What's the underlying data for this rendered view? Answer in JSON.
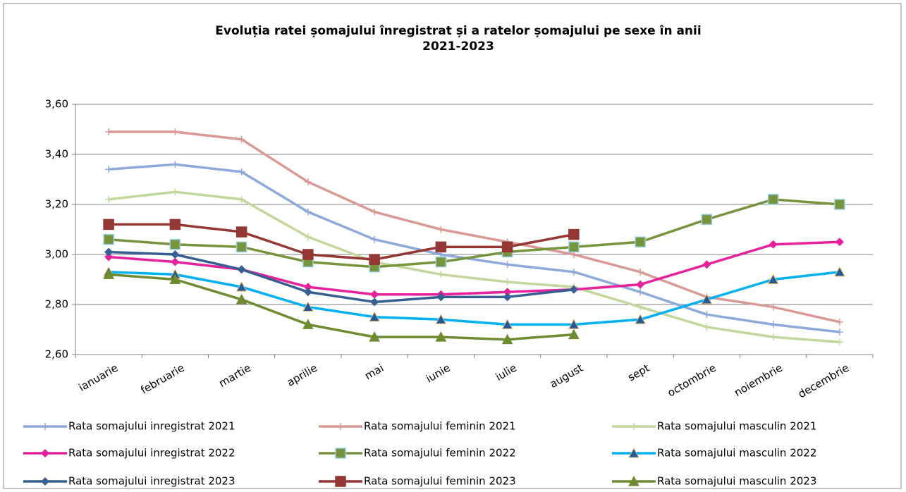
{
  "chart_data": {
    "type": "line",
    "title": [
      "Evoluția ratei șomajului înregistrat și a ratelor șomajului pe sexe în anii",
      "2021-2023"
    ],
    "categories": [
      "ianuarie",
      "februarie",
      "martie",
      "aprilie",
      "mai",
      "iunie",
      "iulie",
      "august",
      "sept",
      "octombrie",
      "noiembrie",
      "decembrie"
    ],
    "ylim": [
      2.6,
      3.6
    ],
    "yticks": [
      {
        "value": 2.6,
        "label": "2,60"
      },
      {
        "value": 2.8,
        "label": "2,80"
      },
      {
        "value": 3.0,
        "label": "3,00"
      },
      {
        "value": 3.2,
        "label": "3,20"
      },
      {
        "value": 3.4,
        "label": "3,40"
      },
      {
        "value": 3.6,
        "label": "3,60"
      }
    ],
    "grid": true,
    "legend": "bottom",
    "series": [
      {
        "name": "Rata somajului inregistrat 2021",
        "color": "#8eaadb",
        "marker": "plus",
        "values": [
          3.34,
          3.36,
          3.33,
          3.17,
          3.06,
          3.0,
          2.96,
          2.93,
          2.85,
          2.76,
          2.72,
          2.69
        ]
      },
      {
        "name": "Rata somajului feminin 2021",
        "color": "#d99a96",
        "marker": "plus",
        "values": [
          3.49,
          3.49,
          3.46,
          3.29,
          3.17,
          3.1,
          3.05,
          3.0,
          2.93,
          2.83,
          2.79,
          2.73
        ]
      },
      {
        "name": "Rata somajului masculin 2021",
        "color": "#c3d69b",
        "marker": "plus",
        "values": [
          3.22,
          3.25,
          3.22,
          3.07,
          2.97,
          2.92,
          2.89,
          2.87,
          2.79,
          2.71,
          2.67,
          2.65
        ]
      },
      {
        "name": "Rata somajului inregistrat 2022",
        "color": "#e6219b",
        "marker": "diamond",
        "values": [
          2.99,
          2.97,
          2.94,
          2.87,
          2.84,
          2.84,
          2.85,
          2.86,
          2.88,
          2.96,
          3.04,
          3.05
        ]
      },
      {
        "name": "Rata somajului feminin 2022",
        "color": "#77933c",
        "marker": "square",
        "values": [
          3.06,
          3.04,
          3.03,
          2.97,
          2.95,
          2.97,
          3.01,
          3.03,
          3.05,
          3.14,
          3.22,
          3.2
        ]
      },
      {
        "name": "Rata somajului masculin 2022",
        "color": "#00b0f0",
        "marker": "triangle",
        "values": [
          2.93,
          2.92,
          2.87,
          2.79,
          2.75,
          2.74,
          2.72,
          2.72,
          2.74,
          2.82,
          2.9,
          2.93
        ]
      },
      {
        "name": "Rata somajului inregistrat 2023",
        "color": "#376092",
        "marker": "diamond",
        "values": [
          3.01,
          3.0,
          2.94,
          2.85,
          2.81,
          2.83,
          2.83,
          2.86,
          null,
          null,
          null,
          null
        ]
      },
      {
        "name": "Rata somajului feminin 2023",
        "color": "#953735",
        "marker": "square",
        "values": [
          3.12,
          3.12,
          3.09,
          3.0,
          2.98,
          3.03,
          3.03,
          3.08,
          null,
          null,
          null,
          null
        ]
      },
      {
        "name": "Rata somajului masculin 2023",
        "color": "#6e8b30",
        "marker": "triangle",
        "values": [
          2.92,
          2.9,
          2.82,
          2.72,
          2.67,
          2.67,
          2.66,
          2.68,
          null,
          null,
          null,
          null
        ]
      }
    ]
  }
}
